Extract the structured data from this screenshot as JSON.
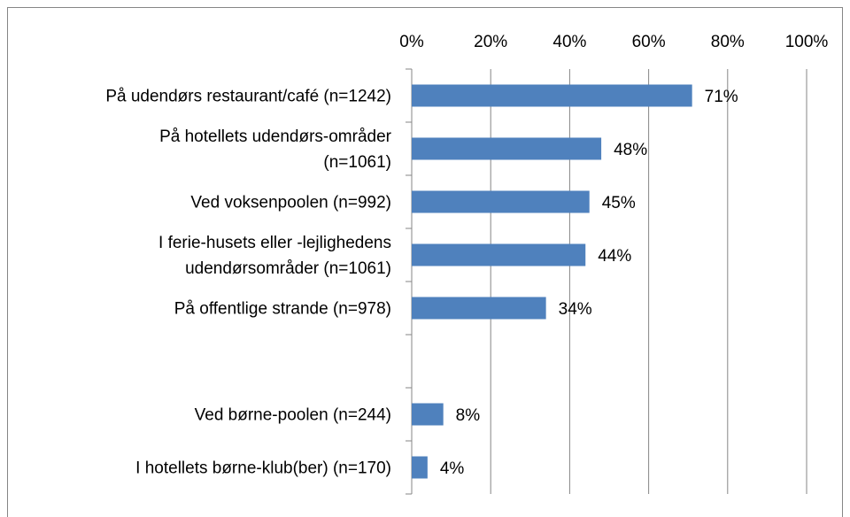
{
  "chart_data": {
    "type": "bar",
    "orientation": "horizontal",
    "categories": [
      "På udendørs restaurant/café (n=1242)",
      "På hotellets udendørs-områder\n(n=1061)",
      "Ved voksenpoolen (n=992)",
      "I ferie-husets eller -lejlighedens\nudendørsområder (n=1061)",
      "På offentlige strande (n=978)",
      null,
      "Ved børne-poolen (n=244)",
      "I hotellets børne-klub(ber) (n=170)"
    ],
    "values": [
      71,
      48,
      45,
      44,
      34,
      null,
      8,
      4
    ],
    "value_labels": [
      "71%",
      "48%",
      "45%",
      "44%",
      "34%",
      null,
      "8%",
      "4%"
    ],
    "color": "#4f81bd",
    "xlim": [
      0,
      100
    ],
    "xticks": [
      {
        "value": 0,
        "label": "0%"
      },
      {
        "value": 20,
        "label": "20%"
      },
      {
        "value": 40,
        "label": "40%"
      },
      {
        "value": 60,
        "label": "60%"
      },
      {
        "value": 80,
        "label": "80%"
      },
      {
        "value": 100,
        "label": "100%"
      }
    ],
    "grid": true
  }
}
